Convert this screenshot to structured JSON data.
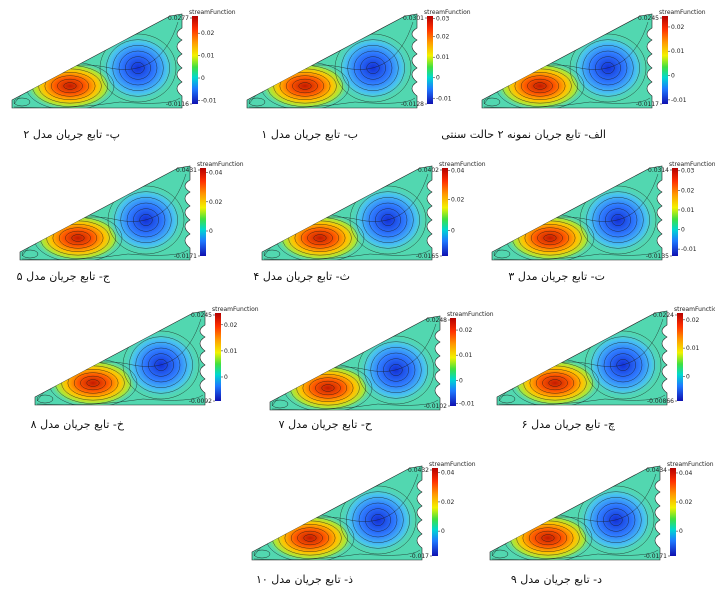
{
  "legend_title": "streamFunction",
  "panels": [
    {
      "id": "alef",
      "caption": "الف- تابع جریان نمونه ۲ حالت سنتی",
      "max": "0.0245",
      "min": "-0.0117",
      "ticks": [
        "0.02",
        "0.01",
        "0",
        "-0.01"
      ]
    },
    {
      "id": "be",
      "caption": "ب- تابع جریان مدل ۱",
      "max": "0.0301",
      "min": "-0.0128",
      "ticks": [
        "0.03",
        "0.02",
        "0.01",
        "0",
        "-0.01"
      ]
    },
    {
      "id": "pe",
      "caption": "پ- تابع جریان مدل ۲",
      "max": "0.0277",
      "min": "-0.0116",
      "ticks": [
        "0.02",
        "0.01",
        "0",
        "-0.01"
      ]
    },
    {
      "id": "te",
      "caption": "ت- تابع جریان مدل ۳",
      "max": "0.0314",
      "min": "-0.0135",
      "ticks": [
        "0.03",
        "0.02",
        "0.01",
        "0",
        "-0.01"
      ]
    },
    {
      "id": "se",
      "caption": "ث- تابع جریان مدل ۴",
      "max": "0.0402",
      "min": "-0.0165",
      "ticks": [
        "0.04",
        "0.02",
        "0"
      ]
    },
    {
      "id": "jim",
      "caption": "ج- تابع جریان مدل ۵",
      "max": "0.0431",
      "min": "-0.0171",
      "ticks": [
        "0.04",
        "0.02",
        "0"
      ]
    },
    {
      "id": "che",
      "caption": "چ- تابع جریان مدل ۶",
      "max": "0.0224",
      "min": "-0.00866",
      "ticks": [
        "0.02",
        "0.01",
        "0"
      ]
    },
    {
      "id": "he",
      "caption": "ح- تابع جریان مدل ۷",
      "max": "0.0248",
      "min": "-0.0102",
      "ticks": [
        "0.02",
        "0.01",
        "0",
        "-0.01"
      ]
    },
    {
      "id": "khe",
      "caption": "خ- تابع جریان مدل ۸",
      "max": "0.0245",
      "min": "-0.0092",
      "ticks": [
        "0.02",
        "0.01",
        "0"
      ]
    },
    {
      "id": "dal",
      "caption": "د- تابع جریان مدل ۹",
      "max": "0.0434",
      "min": "-0.0171",
      "ticks": [
        "0.04",
        "0.02",
        "0"
      ]
    },
    {
      "id": "zal",
      "caption": "ذ- تابع جریان مدل ۱۰",
      "max": "0.0432",
      "min": "-0.017",
      "ticks": [
        "0.04",
        "0.02",
        "0"
      ]
    }
  ]
}
